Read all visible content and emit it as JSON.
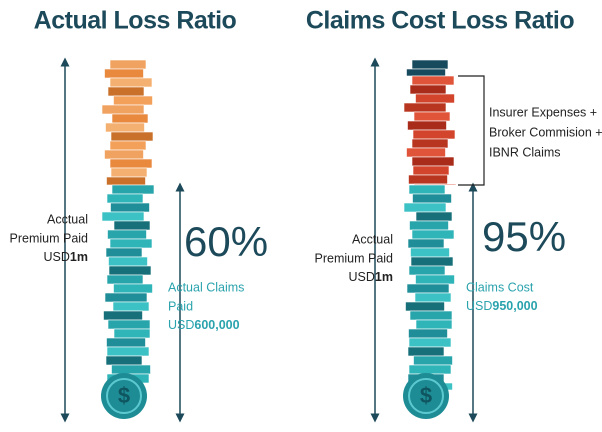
{
  "left": {
    "title": "Actual Loss Ratio",
    "premium": {
      "lines": [
        "Acctual",
        "Premium Paid"
      ],
      "prefix": "USD",
      "amount": "1m"
    },
    "ratio": "60%",
    "claims": {
      "lines": [
        "Actual Claims",
        "Paid"
      ],
      "prefix": "USD",
      "amount": "600,000"
    }
  },
  "right": {
    "title": "Claims Cost Loss Ratio",
    "premium": {
      "lines": [
        "Acctual",
        "Premium Paid"
      ],
      "prefix": "USD",
      "amount": "1m"
    },
    "ratio": "95%",
    "note": [
      "Insurer Expenses +",
      "Broker Commision +",
      "IBNR Claims"
    ],
    "claims": {
      "lines": [
        "Claims Cost"
      ],
      "prefix": "USD",
      "amount": "950,000"
    }
  }
}
